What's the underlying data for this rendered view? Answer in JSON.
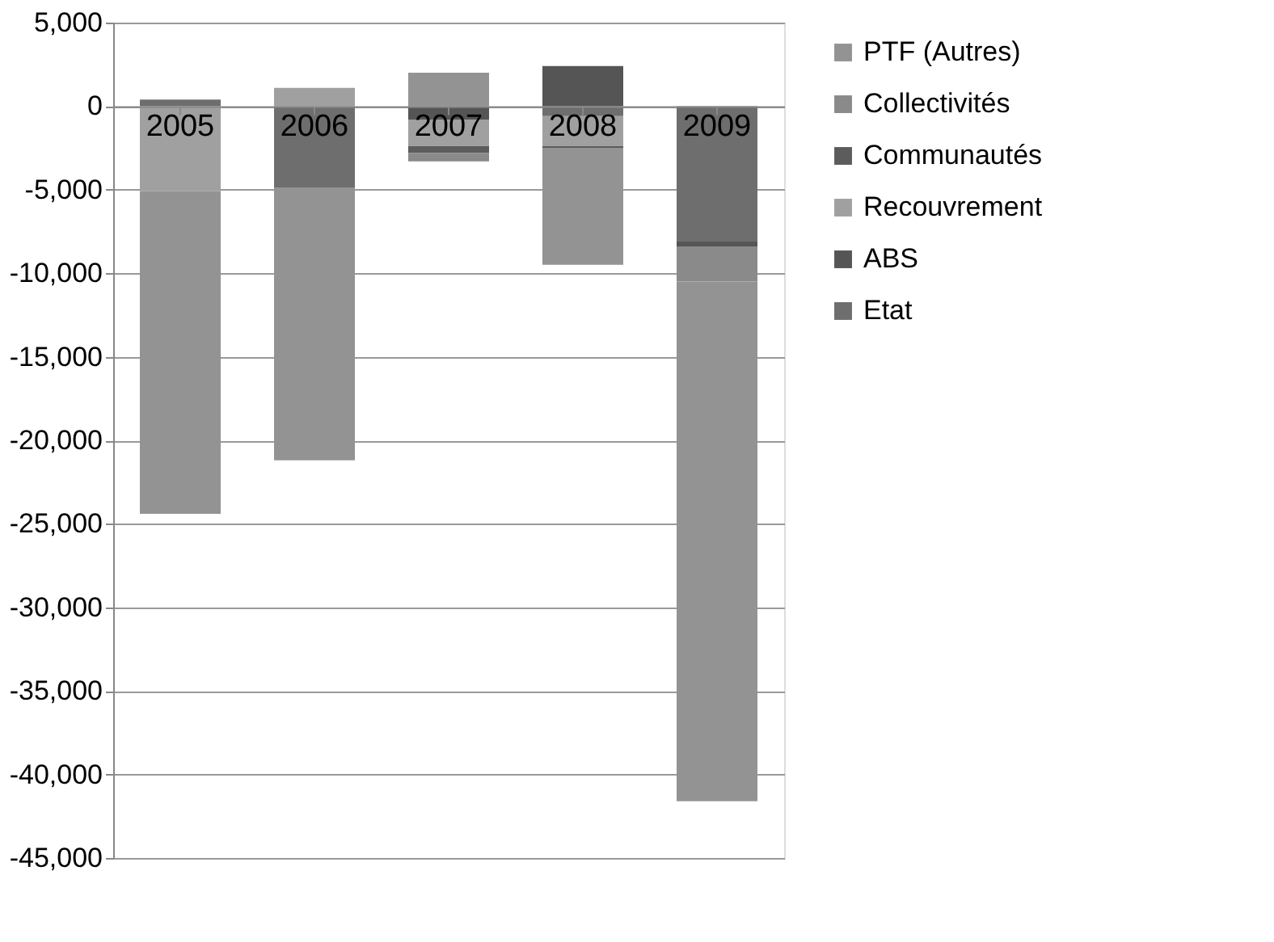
{
  "chart_data": {
    "type": "bar",
    "stacked": true,
    "categories": [
      "2005",
      "2006",
      "2007",
      "2008",
      "2009"
    ],
    "series": [
      {
        "name": "Etat",
        "color": "#6e6e6e",
        "values": [
          400,
          -4900,
          null,
          -600,
          -8100
        ]
      },
      {
        "name": "ABS",
        "color": "#555555",
        "values": [
          null,
          null,
          -800,
          2400,
          -300
        ]
      },
      {
        "name": "Recouvrement",
        "color": "#a0a0a0",
        "values": [
          -5100,
          1100,
          -1600,
          -1800,
          null
        ]
      },
      {
        "name": "Communautés",
        "color": "#5c5c5c",
        "values": [
          null,
          null,
          -400,
          -100,
          null
        ]
      },
      {
        "name": "Collectivités",
        "color": "#8a8a8a",
        "values": [
          null,
          null,
          -500,
          null,
          -2100
        ]
      },
      {
        "name": "PTF (Autres)",
        "color": "#939393",
        "values": [
          -19300,
          -16300,
          2000,
          -7000,
          -31100
        ]
      }
    ],
    "ylim": [
      -45000,
      5000
    ],
    "yticks": [
      {
        "value": 5000,
        "label": "5,000"
      },
      0,
      {
        "value": -5000,
        "label": "-5,000"
      },
      {
        "value": -10000,
        "label": "-10,000"
      },
      {
        "value": -15000,
        "label": "-15,000"
      },
      {
        "value": -20000,
        "label": "-20,000"
      },
      {
        "value": -25000,
        "label": "-25,000"
      },
      {
        "value": -30000,
        "label": "-30,000"
      },
      {
        "value": -35000,
        "label": "-35,000"
      },
      {
        "value": -40000,
        "label": "-40,000"
      },
      {
        "value": -45000,
        "label": "-45,000"
      }
    ],
    "grid": "y",
    "legend": "right"
  }
}
